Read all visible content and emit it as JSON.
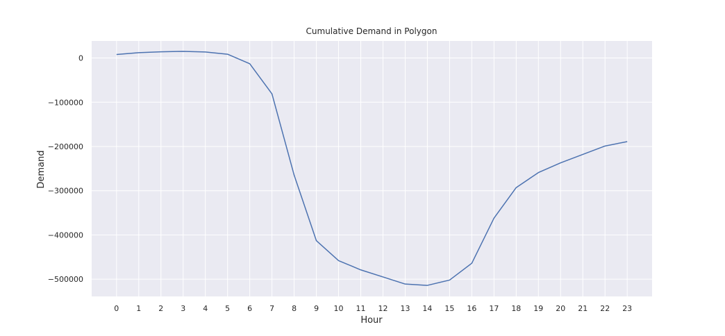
{
  "chart_data": {
    "type": "line",
    "title": "Cumulative Demand in Polygon",
    "xlabel": "Hour",
    "ylabel": "Demand",
    "x": [
      0,
      1,
      2,
      3,
      4,
      5,
      6,
      7,
      8,
      9,
      10,
      11,
      12,
      13,
      14,
      15,
      16,
      17,
      18,
      19,
      20,
      21,
      22,
      23
    ],
    "x_tick_labels": [
      "0",
      "1",
      "2",
      "3",
      "4",
      "5",
      "6",
      "7",
      "8",
      "9",
      "10",
      "11",
      "12",
      "13",
      "14",
      "15",
      "16",
      "17",
      "18",
      "19",
      "20",
      "21",
      "22",
      "23"
    ],
    "y_ticks": [
      0,
      -100000,
      -200000,
      -300000,
      -400000,
      -500000
    ],
    "y_tick_labels": [
      "0",
      "−100000",
      "−200000",
      "−300000",
      "−400000",
      "−500000"
    ],
    "xlim": [
      -1.12,
      24.12
    ],
    "ylim": [
      -539000,
      38500
    ],
    "grid": true,
    "series": [
      {
        "color": "#4c72b0",
        "values": [
          8000,
          12000,
          14000,
          15000,
          13500,
          8500,
          -13000,
          -81000,
          -265000,
          -413000,
          -458000,
          -479000,
          -495000,
          -511000,
          -514000,
          -502000,
          -464000,
          -362000,
          -293000,
          -259000,
          -237000,
          -218000,
          -199000,
          -189000
        ]
      }
    ],
    "background": "#eaeaf2",
    "grid_color": "#ffffff"
  }
}
